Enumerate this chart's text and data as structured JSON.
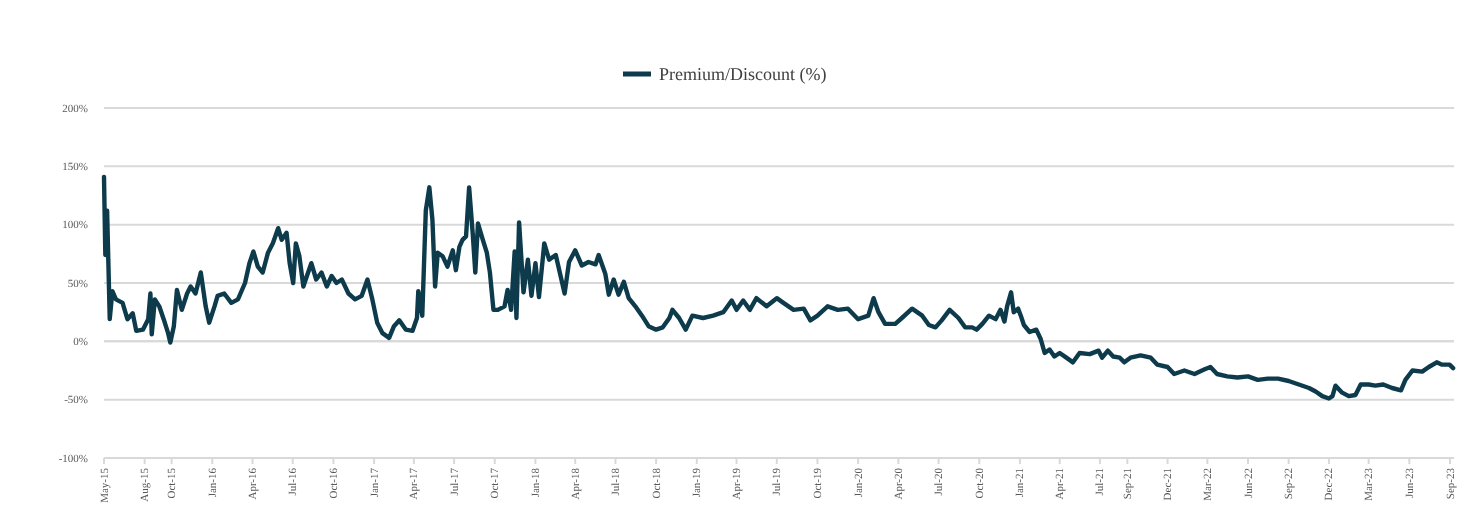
{
  "chart_data": {
    "type": "line",
    "xlim": [
      "2015-05-01",
      "2023-09-10"
    ],
    "ylim": [
      -100,
      200
    ],
    "yticks": [
      {
        "value": -100,
        "label": "-100%"
      },
      {
        "value": -50,
        "label": "-50%"
      },
      {
        "value": 0,
        "label": "0%"
      },
      {
        "value": 50,
        "label": "50%"
      },
      {
        "value": 100,
        "label": "100%"
      },
      {
        "value": 150,
        "label": "150%"
      },
      {
        "value": 200,
        "label": "200%"
      }
    ],
    "xticks": [
      {
        "value": "2015-05-01",
        "label": "May-15"
      },
      {
        "value": "2015-08-01",
        "label": "Aug-15"
      },
      {
        "value": "2015-10-01",
        "label": "Oct-15"
      },
      {
        "value": "2016-01-01",
        "label": "Jan-16"
      },
      {
        "value": "2016-04-01",
        "label": "Apr-16"
      },
      {
        "value": "2016-07-01",
        "label": "Jul-16"
      },
      {
        "value": "2016-10-01",
        "label": "Oct-16"
      },
      {
        "value": "2017-01-01",
        "label": "Jan-17"
      },
      {
        "value": "2017-04-01",
        "label": "Apr-17"
      },
      {
        "value": "2017-07-01",
        "label": "Jul-17"
      },
      {
        "value": "2017-10-01",
        "label": "Oct-17"
      },
      {
        "value": "2018-01-01",
        "label": "Jan-18"
      },
      {
        "value": "2018-04-01",
        "label": "Apr-18"
      },
      {
        "value": "2018-07-01",
        "label": "Jul-18"
      },
      {
        "value": "2018-10-01",
        "label": "Oct-18"
      },
      {
        "value": "2019-01-01",
        "label": "Jan-19"
      },
      {
        "value": "2019-04-01",
        "label": "Apr-19"
      },
      {
        "value": "2019-07-01",
        "label": "Jul-19"
      },
      {
        "value": "2019-10-01",
        "label": "Oct-19"
      },
      {
        "value": "2020-01-01",
        "label": "Jan-20"
      },
      {
        "value": "2020-04-01",
        "label": "Apr-20"
      },
      {
        "value": "2020-07-01",
        "label": "Jul-20"
      },
      {
        "value": "2020-10-01",
        "label": "Oct-20"
      },
      {
        "value": "2021-01-01",
        "label": "Jan-21"
      },
      {
        "value": "2021-04-01",
        "label": "Apr-21"
      },
      {
        "value": "2021-07-01",
        "label": "Jul-21"
      },
      {
        "value": "2021-09-01",
        "label": "Sep-21"
      },
      {
        "value": "2021-12-01",
        "label": "Dec-21"
      },
      {
        "value": "2022-03-01",
        "label": "Mar-22"
      },
      {
        "value": "2022-06-01",
        "label": "Jun-22"
      },
      {
        "value": "2022-09-01",
        "label": "Sep-22"
      },
      {
        "value": "2022-12-01",
        "label": "Dec-22"
      },
      {
        "value": "2023-03-01",
        "label": "Mar-23"
      },
      {
        "value": "2023-06-01",
        "label": "Jun-23"
      },
      {
        "value": "2023-09-01",
        "label": "Sep-23"
      }
    ],
    "grid": "y",
    "legend": "top",
    "series": [
      {
        "name": "Premium/Discount (%)",
        "color": "#0d3b4c",
        "x": [
          "2015-05-01",
          "2015-05-04",
          "2015-05-08",
          "2015-05-14",
          "2015-05-20",
          "2015-05-28",
          "2015-06-12",
          "2015-06-23",
          "2015-07-05",
          "2015-07-13",
          "2015-07-28",
          "2015-08-09",
          "2015-08-14",
          "2015-08-17",
          "2015-08-24",
          "2015-09-03",
          "2015-09-13",
          "2015-09-23",
          "2015-09-28",
          "2015-10-06",
          "2015-10-13",
          "2015-10-24",
          "2015-11-05",
          "2015-11-13",
          "2015-11-24",
          "2015-12-06",
          "2015-12-17",
          "2015-12-25",
          "2016-01-06",
          "2016-01-13",
          "2016-01-28",
          "2016-02-13",
          "2016-02-28",
          "2016-03-15",
          "2016-03-25",
          "2016-04-03",
          "2016-04-13",
          "2016-04-24",
          "2016-05-06",
          "2016-05-17",
          "2016-05-29",
          "2016-06-06",
          "2016-06-17",
          "2016-06-24",
          "2016-07-02",
          "2016-07-08",
          "2016-07-16",
          "2016-07-25",
          "2016-08-02",
          "2016-08-12",
          "2016-08-23",
          "2016-09-04",
          "2016-09-16",
          "2016-09-27",
          "2016-10-08",
          "2016-10-20",
          "2016-11-04",
          "2016-11-19",
          "2016-12-04",
          "2016-12-17",
          "2016-12-28",
          "2017-01-08",
          "2017-01-20",
          "2017-02-04",
          "2017-02-15",
          "2017-02-27",
          "2017-03-14",
          "2017-03-29",
          "2017-04-08",
          "2017-04-11",
          "2017-04-20",
          "2017-04-28",
          "2017-05-06",
          "2017-05-13",
          "2017-05-19",
          "2017-05-25",
          "2017-06-05",
          "2017-06-16",
          "2017-06-28",
          "2017-07-05",
          "2017-07-13",
          "2017-07-20",
          "2017-07-28",
          "2017-08-04",
          "2017-08-12",
          "2017-08-18",
          "2017-08-24",
          "2017-09-04",
          "2017-09-13",
          "2017-09-20",
          "2017-09-28",
          "2017-10-08",
          "2017-10-23",
          "2017-10-30",
          "2017-11-07",
          "2017-11-15",
          "2017-11-19",
          "2017-11-25",
          "2017-12-05",
          "2017-12-15",
          "2017-12-23",
          "2018-01-01",
          "2018-01-09",
          "2018-01-21",
          "2018-02-01",
          "2018-02-16",
          "2018-03-08",
          "2018-03-18",
          "2018-04-01",
          "2018-04-16",
          "2018-05-01",
          "2018-05-17",
          "2018-05-24",
          "2018-06-08",
          "2018-06-16",
          "2018-06-27",
          "2018-07-08",
          "2018-07-20",
          "2018-07-31",
          "2018-08-15",
          "2018-08-30",
          "2018-09-14",
          "2018-10-01",
          "2018-10-16",
          "2018-10-31",
          "2018-11-07",
          "2018-11-22",
          "2018-12-07",
          "2018-12-22",
          "2019-01-15",
          "2019-02-07",
          "2019-03-02",
          "2019-03-21",
          "2019-04-01",
          "2019-04-16",
          "2019-05-01",
          "2019-05-16",
          "2019-06-08",
          "2019-07-01",
          "2019-07-16",
          "2019-08-08",
          "2019-08-31",
          "2019-09-15",
          "2019-10-01",
          "2019-10-24",
          "2019-11-16",
          "2019-12-09",
          "2020-01-01",
          "2020-01-24",
          "2020-02-05",
          "2020-02-16",
          "2020-03-02",
          "2020-03-25",
          "2020-04-09",
          "2020-05-02",
          "2020-05-25",
          "2020-06-09",
          "2020-06-24",
          "2020-07-08",
          "2020-07-26",
          "2020-08-15",
          "2020-08-30",
          "2020-09-15",
          "2020-09-25",
          "2020-10-08",
          "2020-10-23",
          "2020-11-07",
          "2020-11-18",
          "2020-11-27",
          "2020-12-03",
          "2020-12-12",
          "2020-12-18",
          "2020-12-28",
          "2021-01-03",
          "2021-01-10",
          "2021-01-23",
          "2021-02-07",
          "2021-02-17",
          "2021-02-26",
          "2021-03-09",
          "2021-03-20",
          "2021-04-01",
          "2021-04-16",
          "2021-05-01",
          "2021-05-16",
          "2021-06-08",
          "2021-06-28",
          "2021-07-06",
          "2021-07-19",
          "2021-07-31",
          "2021-08-15",
          "2021-08-25",
          "2021-09-08",
          "2021-10-01",
          "2021-10-24",
          "2021-11-08",
          "2021-12-01",
          "2021-12-16",
          "2022-01-08",
          "2022-01-31",
          "2022-02-23",
          "2022-03-08",
          "2022-03-23",
          "2022-04-15",
          "2022-05-08",
          "2022-06-01",
          "2022-06-23",
          "2022-07-16",
          "2022-08-08",
          "2022-09-01",
          "2022-09-24",
          "2022-10-17",
          "2022-11-01",
          "2022-11-16",
          "2022-12-01",
          "2022-12-09",
          "2022-12-16",
          "2022-12-31",
          "2023-01-15",
          "2023-01-30",
          "2023-02-11",
          "2023-03-01",
          "2023-03-16",
          "2023-04-03",
          "2023-04-23",
          "2023-05-13",
          "2023-05-23",
          "2023-06-08",
          "2023-06-30",
          "2023-07-15",
          "2023-08-02",
          "2023-08-14",
          "2023-08-31",
          "2023-09-08"
        ],
        "values": [
          141,
          74,
          112,
          19,
          43,
          36,
          33,
          19,
          24,
          9,
          10,
          19,
          41,
          6,
          36,
          30,
          19,
          7,
          -1,
          13,
          44,
          27,
          41,
          47,
          41,
          59,
          30,
          16,
          30,
          39,
          41,
          33,
          36,
          50,
          67,
          77,
          64,
          59,
          76,
          84,
          97,
          87,
          93,
          67,
          50,
          84,
          73,
          47,
          56,
          67,
          53,
          59,
          47,
          56,
          50,
          53,
          41,
          36,
          39,
          53,
          36,
          16,
          7,
          3,
          13,
          18,
          10,
          9,
          20,
          43,
          22,
          112,
          132,
          104,
          47,
          76,
          73,
          64,
          78,
          61,
          81,
          87,
          90,
          132,
          93,
          59,
          101,
          87,
          76,
          59,
          27,
          27,
          30,
          44,
          27,
          77,
          20,
          102,
          42,
          70,
          39,
          67,
          38,
          84,
          70,
          74,
          41,
          68,
          78,
          65,
          68,
          66,
          74,
          58,
          40,
          53,
          40,
          51,
          37,
          30,
          22,
          13,
          10,
          12,
          20,
          27,
          20,
          10,
          22,
          20,
          22,
          25,
          35,
          27,
          35,
          27,
          37,
          30,
          37,
          33,
          27,
          28,
          18,
          22,
          30,
          27,
          28,
          19,
          22,
          37,
          25,
          15,
          15,
          20,
          28,
          22,
          14,
          12,
          18,
          27,
          20,
          12,
          12,
          10,
          15,
          22,
          19,
          27,
          17,
          30,
          42,
          25,
          28,
          22,
          14,
          8,
          10,
          2,
          -10,
          -7,
          -13,
          -10,
          -14,
          -18,
          -10,
          -11,
          -8,
          -14,
          -8,
          -13,
          -14,
          -18,
          -14,
          -12,
          -14,
          -20,
          -22,
          -28,
          -25,
          -28,
          -24,
          -22,
          -28,
          -30,
          -31,
          -30,
          -33,
          -32,
          -32,
          -34,
          -37,
          -40,
          -43,
          -47,
          -49,
          -47,
          -38,
          -44,
          -47,
          -46,
          -37,
          -37,
          -38,
          -37,
          -40,
          -42,
          -33,
          -25,
          -26,
          -22,
          -18,
          -20,
          -20,
          -23
        ]
      }
    ]
  }
}
